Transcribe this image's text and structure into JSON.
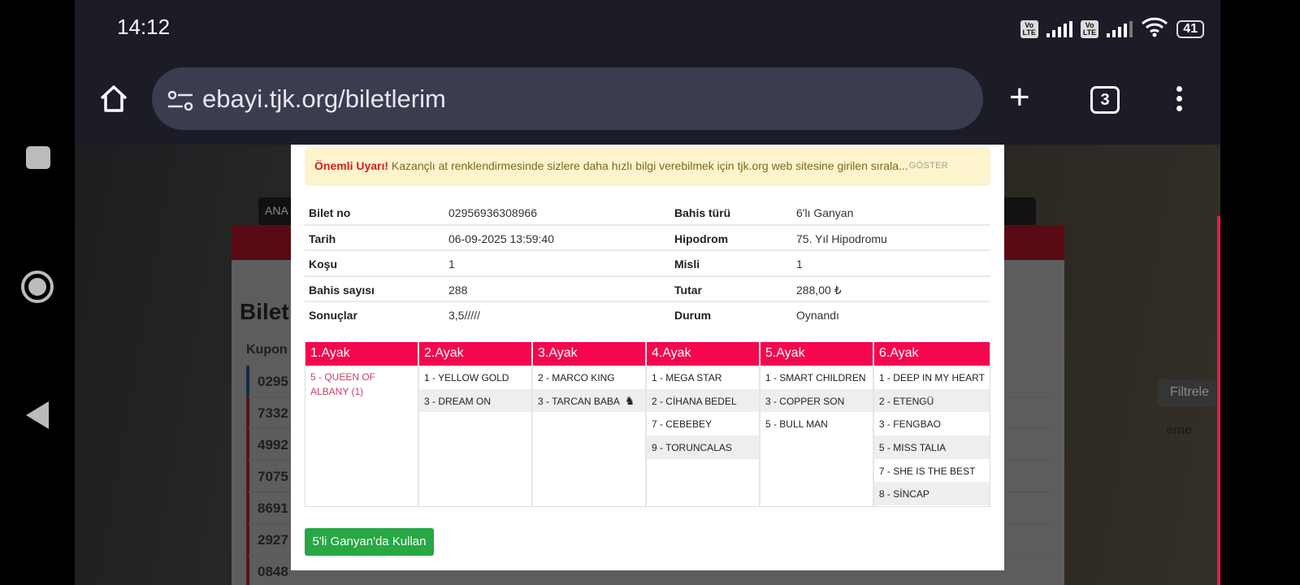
{
  "status_bar": {
    "time": "14:12",
    "volte1": "Vo LTE",
    "volte2": "Vo LTE",
    "battery": "41"
  },
  "browser": {
    "url": "ebayi.tjk.org/biletlerim",
    "tab_count": "3"
  },
  "background_page": {
    "nav_tab": "ANA",
    "title": "Bilet",
    "kupon_header": "Kupon",
    "rows": [
      "0295",
      "7332",
      "4992",
      "7075",
      "8691",
      "2927",
      "0848"
    ],
    "filter_button": "Filtrele",
    "column_tail": "eme"
  },
  "modal": {
    "alert": {
      "title": "Önemli Uyarı!",
      "text": "Kazançlı at renklendirmesinde sizlere daha hızlı bilgi verebilmek için tjk.org web sitesine girilen sırala...",
      "show": "GÖSTER"
    },
    "info": [
      {
        "label": "Bilet no",
        "value": "02956936308966",
        "label2": "Bahis türü",
        "value2": "6'lı Ganyan"
      },
      {
        "label": "Tarih",
        "value": "06-09-2025 13:59:40",
        "label2": "Hipodrom",
        "value2": "75. Yıl Hipodromu"
      },
      {
        "label": "Koşu",
        "value": "1",
        "label2": "Misli",
        "value2": "1"
      },
      {
        "label": "Bahis sayısı",
        "value": "288",
        "label2": "Tutar",
        "value2": "288,00 ₺"
      },
      {
        "label": "Sonuçlar",
        "value": "3,5/////",
        "label2": "Durum",
        "value2": "Oynandı"
      }
    ],
    "legs": [
      {
        "title": "1.Ayak",
        "horses": [
          "5 - QUEEN OF ALBANY (1)"
        ]
      },
      {
        "title": "2.Ayak",
        "horses": [
          "1 - YELLOW GOLD",
          "3 - DREAM ON"
        ]
      },
      {
        "title": "3.Ayak",
        "horses": [
          "2 - MARCO KING",
          "3 - TARCAN BABA"
        ]
      },
      {
        "title": "4.Ayak",
        "horses": [
          "1 - MEGA STAR",
          "2 - CİHANA BEDEL",
          "7 - CEBEBEY",
          "9 - TORUNCALAS"
        ]
      },
      {
        "title": "5.Ayak",
        "horses": [
          "1 - SMART CHILDREN",
          "3 - COPPER SON",
          "5 - BULL MAN"
        ]
      },
      {
        "title": "6.Ayak",
        "horses": [
          "1 - DEEP IN MY HEART",
          "2 - ETENGÜ",
          "3 - FENGBAO",
          "5 - MISS TALIA",
          "7 - SHE IS THE BEST",
          "8 - SİNCAP"
        ]
      }
    ],
    "winner_color": "#c8415d",
    "header_color": "#f5074f",
    "use_button": "5'li Ganyan'da Kullan"
  }
}
